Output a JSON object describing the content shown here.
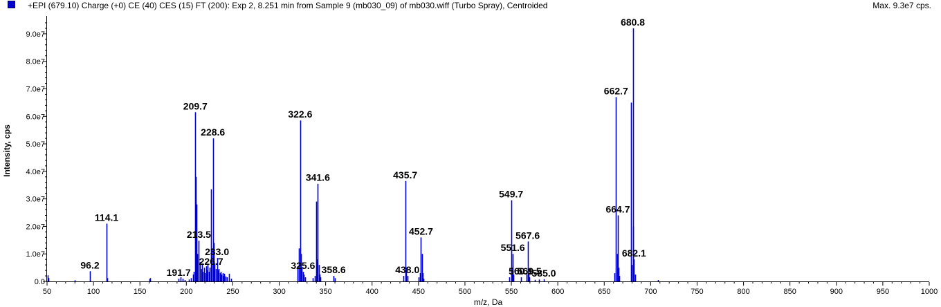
{
  "header": {
    "title": "+EPI (679.10) Charge (+0) CE (40) CES (15) FT (200): Exp 2, 8.251 min from Sample 9 (mb030_09) of mb030.wiff (Turbo Spray), Centroided",
    "max_label": "Max. 9.3e7 cps."
  },
  "colors": {
    "peak": "#0000cc",
    "axis": "#000000"
  },
  "chart_data": {
    "type": "bar",
    "xlabel": "m/z, Da",
    "ylabel": "Intensity, cps",
    "xlim": [
      50,
      1000
    ],
    "ylim": [
      0,
      95000000
    ],
    "x_ticks": [
      50,
      100,
      150,
      200,
      250,
      300,
      350,
      400,
      450,
      500,
      550,
      600,
      650,
      700,
      750,
      800,
      850,
      900,
      950,
      1000
    ],
    "y_ticks": [
      {
        "value": 0,
        "label": "0.0"
      },
      {
        "value": 10000000,
        "label": "1.0e7"
      },
      {
        "value": 20000000,
        "label": "2.0e7"
      },
      {
        "value": 30000000,
        "label": "3.0e7"
      },
      {
        "value": 40000000,
        "label": "4.0e7"
      },
      {
        "value": 50000000,
        "label": "5.0e7"
      },
      {
        "value": 60000000,
        "label": "6.0e7"
      },
      {
        "value": 70000000,
        "label": "7.0e7"
      },
      {
        "value": 80000000,
        "label": "8.0e7"
      },
      {
        "value": 90000000,
        "label": "9.0e7"
      }
    ],
    "peaks": [
      {
        "mz": 50.5,
        "intensity": 2200000
      },
      {
        "mz": 51.5,
        "intensity": 1200000
      },
      {
        "mz": 80.0,
        "intensity": 400000
      },
      {
        "mz": 96.2,
        "intensity": 3700000
      },
      {
        "mz": 114.1,
        "intensity": 21000000
      },
      {
        "mz": 115.1,
        "intensity": 1200000
      },
      {
        "mz": 160.0,
        "intensity": 900000
      },
      {
        "mz": 161.0,
        "intensity": 1200000
      },
      {
        "mz": 191.7,
        "intensity": 1000000
      },
      {
        "mz": 194.0,
        "intensity": 1500000
      },
      {
        "mz": 196.0,
        "intensity": 1000000
      },
      {
        "mz": 198.0,
        "intensity": 500000
      },
      {
        "mz": 203.0,
        "intensity": 700000
      },
      {
        "mz": 205.0,
        "intensity": 1200000
      },
      {
        "mz": 207.0,
        "intensity": 2500000
      },
      {
        "mz": 208.0,
        "intensity": 3500000
      },
      {
        "mz": 209.7,
        "intensity": 61500000
      },
      {
        "mz": 210.0,
        "intensity": 38000000
      },
      {
        "mz": 211.0,
        "intensity": 28000000
      },
      {
        "mz": 212.0,
        "intensity": 10000000
      },
      {
        "mz": 213.5,
        "intensity": 14800000
      },
      {
        "mz": 214.5,
        "intensity": 7000000
      },
      {
        "mz": 216.0,
        "intensity": 4500000
      },
      {
        "mz": 217.0,
        "intensity": 6500000
      },
      {
        "mz": 218.0,
        "intensity": 3500000
      },
      {
        "mz": 219.0,
        "intensity": 5000000
      },
      {
        "mz": 220.0,
        "intensity": 3000000
      },
      {
        "mz": 221.0,
        "intensity": 5500000
      },
      {
        "mz": 222.0,
        "intensity": 4000000
      },
      {
        "mz": 223.0,
        "intensity": 6000000
      },
      {
        "mz": 224.0,
        "intensity": 3500000
      },
      {
        "mz": 225.0,
        "intensity": 5000000
      },
      {
        "mz": 226.7,
        "intensity": 33500000
      },
      {
        "mz": 227.5,
        "intensity": 12000000
      },
      {
        "mz": 228.6,
        "intensity": 52000000
      },
      {
        "mz": 229.5,
        "intensity": 14000000
      },
      {
        "mz": 230.5,
        "intensity": 6500000
      },
      {
        "mz": 231.5,
        "intensity": 4500000
      },
      {
        "mz": 233.0,
        "intensity": 8500000
      },
      {
        "mz": 234.0,
        "intensity": 4000000
      },
      {
        "mz": 235.0,
        "intensity": 4500000
      },
      {
        "mz": 236.0,
        "intensity": 3000000
      },
      {
        "mz": 237.0,
        "intensity": 3500000
      },
      {
        "mz": 238.0,
        "intensity": 2500000
      },
      {
        "mz": 239.0,
        "intensity": 3000000
      },
      {
        "mz": 240.0,
        "intensity": 2000000
      },
      {
        "mz": 241.0,
        "intensity": 2800000
      },
      {
        "mz": 242.0,
        "intensity": 1800000
      },
      {
        "mz": 244.0,
        "intensity": 1500000
      },
      {
        "mz": 246.0,
        "intensity": 2800000
      },
      {
        "mz": 248.0,
        "intensity": 1000000
      },
      {
        "mz": 320.0,
        "intensity": 5500000
      },
      {
        "mz": 321.5,
        "intensity": 12000000
      },
      {
        "mz": 322.6,
        "intensity": 58500000
      },
      {
        "mz": 323.5,
        "intensity": 10000000
      },
      {
        "mz": 324.5,
        "intensity": 5000000
      },
      {
        "mz": 325.6,
        "intensity": 3500000
      },
      {
        "mz": 326.5,
        "intensity": 2500000
      },
      {
        "mz": 328.0,
        "intensity": 1500000
      },
      {
        "mz": 336.0,
        "intensity": 1200000
      },
      {
        "mz": 338.0,
        "intensity": 2000000
      },
      {
        "mz": 339.6,
        "intensity": 29000000
      },
      {
        "mz": 340.5,
        "intensity": 8000000
      },
      {
        "mz": 341.6,
        "intensity": 35500000
      },
      {
        "mz": 342.5,
        "intensity": 6000000
      },
      {
        "mz": 343.5,
        "intensity": 2500000
      },
      {
        "mz": 344.5,
        "intensity": 1500000
      },
      {
        "mz": 358.6,
        "intensity": 2000000
      },
      {
        "mz": 360.0,
        "intensity": 1200000
      },
      {
        "mz": 434.0,
        "intensity": 2000000
      },
      {
        "mz": 435.7,
        "intensity": 36500000
      },
      {
        "mz": 436.5,
        "intensity": 5000000
      },
      {
        "mz": 438.0,
        "intensity": 2000000
      },
      {
        "mz": 450.0,
        "intensity": 1500000
      },
      {
        "mz": 451.5,
        "intensity": 3000000
      },
      {
        "mz": 452.7,
        "intensity": 16000000
      },
      {
        "mz": 453.5,
        "intensity": 10000000
      },
      {
        "mz": 454.5,
        "intensity": 3000000
      },
      {
        "mz": 455.5,
        "intensity": 1000000
      },
      {
        "mz": 548.0,
        "intensity": 1500000
      },
      {
        "mz": 549.7,
        "intensity": 29500000
      },
      {
        "mz": 550.5,
        "intensity": 5000000
      },
      {
        "mz": 551.6,
        "intensity": 10000000
      },
      {
        "mz": 552.5,
        "intensity": 2500000
      },
      {
        "mz": 560.1,
        "intensity": 1500000
      },
      {
        "mz": 566.0,
        "intensity": 2500000
      },
      {
        "mz": 567.6,
        "intensity": 14500000
      },
      {
        "mz": 568.5,
        "intensity": 2500000
      },
      {
        "mz": 569.5,
        "intensity": 1500000
      },
      {
        "mz": 575.0,
        "intensity": 600000
      },
      {
        "mz": 580.0,
        "intensity": 700000
      },
      {
        "mz": 585.0,
        "intensity": 800000
      },
      {
        "mz": 661.0,
        "intensity": 3000000
      },
      {
        "mz": 662.7,
        "intensity": 67000000
      },
      {
        "mz": 663.6,
        "intensity": 10000000
      },
      {
        "mz": 664.7,
        "intensity": 24000000
      },
      {
        "mz": 665.6,
        "intensity": 5000000
      },
      {
        "mz": 666.5,
        "intensity": 2000000
      },
      {
        "mz": 678.8,
        "intensity": 65000000
      },
      {
        "mz": 679.8,
        "intensity": 6000000
      },
      {
        "mz": 680.8,
        "intensity": 92000000
      },
      {
        "mz": 681.4,
        "intensity": 20000000
      },
      {
        "mz": 682.1,
        "intensity": 8000000
      },
      {
        "mz": 683.0,
        "intensity": 2500000
      },
      {
        "mz": 708.0,
        "intensity": 500000
      }
    ],
    "annotations": [
      {
        "text": "96.2",
        "mz": 96.2,
        "intensity": 3700000
      },
      {
        "text": "114.1",
        "mz": 114.1,
        "intensity": 21000000
      },
      {
        "text": "191.7",
        "mz": 191.7,
        "intensity": 1000000
      },
      {
        "text": "209.7",
        "mz": 209.7,
        "intensity": 61500000
      },
      {
        "text": "213.5",
        "mz": 213.5,
        "intensity": 14800000
      },
      {
        "text": "226.7",
        "mz": 226.7,
        "intensity": 5000000
      },
      {
        "text": "228.6",
        "mz": 228.6,
        "intensity": 52000000
      },
      {
        "text": "233.0",
        "mz": 233.0,
        "intensity": 8500000
      },
      {
        "text": "322.6",
        "mz": 322.6,
        "intensity": 58500000
      },
      {
        "text": "325.6",
        "mz": 325.6,
        "intensity": 3500000
      },
      {
        "text": "341.6",
        "mz": 341.6,
        "intensity": 35500000
      },
      {
        "text": "358.6",
        "mz": 358.6,
        "intensity": 2000000
      },
      {
        "text": "435.7",
        "mz": 435.7,
        "intensity": 36500000
      },
      {
        "text": "438.0",
        "mz": 438.0,
        "intensity": 2000000
      },
      {
        "text": "452.7",
        "mz": 452.7,
        "intensity": 16000000
      },
      {
        "text": "549.7",
        "mz": 549.7,
        "intensity": 29500000
      },
      {
        "text": "551.6",
        "mz": 551.6,
        "intensity": 10000000
      },
      {
        "text": "560.1",
        "mz": 560.1,
        "intensity": 1500000
      },
      {
        "text": "567.6",
        "mz": 567.6,
        "intensity": 14500000
      },
      {
        "text": "569.5",
        "mz": 569.5,
        "intensity": 1500000
      },
      {
        "text": "585.0",
        "mz": 585.0,
        "intensity": 800000
      },
      {
        "text": "662.7",
        "mz": 662.7,
        "intensity": 67000000
      },
      {
        "text": "664.7",
        "mz": 664.7,
        "intensity": 24000000
      },
      {
        "text": "680.8",
        "mz": 680.8,
        "intensity": 92000000
      },
      {
        "text": "682.1",
        "mz": 682.1,
        "intensity": 8000000
      }
    ]
  }
}
